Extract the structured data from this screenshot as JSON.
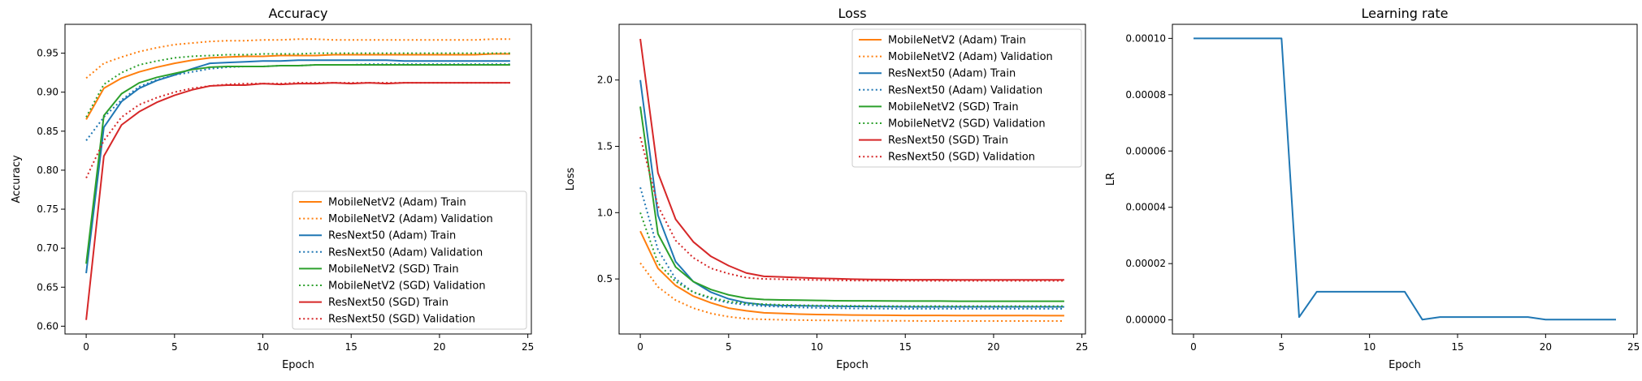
{
  "chart_data": [
    {
      "type": "line",
      "title": "Accuracy",
      "xlabel": "Epoch",
      "ylabel": "Accuracy",
      "xlim": [
        -1.2,
        25.2
      ],
      "ylim": [
        0.59,
        0.987
      ],
      "xticks": [
        0,
        5,
        10,
        15,
        20,
        25
      ],
      "xtick_labels": [
        "0",
        "5",
        "10",
        "15",
        "20",
        "25"
      ],
      "yticks": [
        0.6,
        0.65,
        0.7,
        0.75,
        0.8,
        0.85,
        0.9,
        0.95
      ],
      "ytick_labels": [
        "0.60",
        "0.65",
        "0.70",
        "0.75",
        "0.80",
        "0.85",
        "0.90",
        "0.95"
      ],
      "grid": false,
      "legend_position": "lower-right",
      "x": [
        0,
        1,
        2,
        3,
        4,
        5,
        6,
        7,
        8,
        9,
        10,
        11,
        12,
        13,
        14,
        15,
        16,
        17,
        18,
        19,
        20,
        21,
        22,
        23,
        24
      ],
      "series": [
        {
          "name": "MobileNetV2 (Adam) Train",
          "color": "#ff7f0e",
          "dash": "solid",
          "values": [
            0.865,
            0.905,
            0.918,
            0.926,
            0.932,
            0.937,
            0.941,
            0.944,
            0.945,
            0.946,
            0.946,
            0.947,
            0.947,
            0.947,
            0.948,
            0.948,
            0.948,
            0.948,
            0.948,
            0.948,
            0.948,
            0.948,
            0.948,
            0.949,
            0.949
          ]
        },
        {
          "name": "MobileNetV2 (Adam) Validation",
          "color": "#ff7f0e",
          "dash": "dotted",
          "values": [
            0.918,
            0.937,
            0.945,
            0.952,
            0.957,
            0.961,
            0.963,
            0.965,
            0.966,
            0.966,
            0.967,
            0.967,
            0.968,
            0.968,
            0.967,
            0.967,
            0.967,
            0.967,
            0.967,
            0.967,
            0.967,
            0.967,
            0.967,
            0.968,
            0.968
          ]
        },
        {
          "name": "ResNext50 (Adam) Train",
          "color": "#1f77b4",
          "dash": "solid",
          "values": [
            0.668,
            0.855,
            0.888,
            0.905,
            0.915,
            0.922,
            0.93,
            0.937,
            0.938,
            0.939,
            0.94,
            0.94,
            0.941,
            0.941,
            0.941,
            0.941,
            0.941,
            0.941,
            0.94,
            0.94,
            0.94,
            0.94,
            0.94,
            0.94,
            0.94
          ]
        },
        {
          "name": "ResNext50 (Adam) Validation",
          "color": "#1f77b4",
          "dash": "dotted",
          "values": [
            0.838,
            0.868,
            0.89,
            0.907,
            0.916,
            0.922,
            0.926,
            0.93,
            0.932,
            0.933,
            0.933,
            0.934,
            0.934,
            0.935,
            0.935,
            0.935,
            0.936,
            0.936,
            0.936,
            0.936,
            0.936,
            0.936,
            0.936,
            0.936,
            0.936
          ]
        },
        {
          "name": "MobileNetV2 (SGD) Train",
          "color": "#2ca02c",
          "dash": "solid",
          "values": [
            0.68,
            0.87,
            0.898,
            0.912,
            0.919,
            0.924,
            0.929,
            0.932,
            0.933,
            0.933,
            0.933,
            0.934,
            0.934,
            0.935,
            0.935,
            0.935,
            0.935,
            0.935,
            0.935,
            0.935,
            0.935,
            0.935,
            0.935,
            0.935,
            0.935
          ]
        },
        {
          "name": "MobileNetV2 (SGD) Validation",
          "color": "#2ca02c",
          "dash": "dotted",
          "values": [
            0.868,
            0.91,
            0.925,
            0.935,
            0.94,
            0.944,
            0.946,
            0.947,
            0.948,
            0.948,
            0.949,
            0.949,
            0.949,
            0.95,
            0.95,
            0.95,
            0.95,
            0.95,
            0.95,
            0.95,
            0.95,
            0.95,
            0.95,
            0.95,
            0.95
          ]
        },
        {
          "name": "ResNext50 (SGD) Train",
          "color": "#d62728",
          "dash": "solid",
          "values": [
            0.608,
            0.818,
            0.858,
            0.875,
            0.887,
            0.896,
            0.903,
            0.908,
            0.909,
            0.909,
            0.911,
            0.91,
            0.911,
            0.911,
            0.912,
            0.911,
            0.912,
            0.911,
            0.912,
            0.912,
            0.912,
            0.912,
            0.912,
            0.912,
            0.912
          ]
        },
        {
          "name": "ResNext50 (SGD) Validation",
          "color": "#d62728",
          "dash": "dotted",
          "values": [
            0.79,
            0.838,
            0.868,
            0.884,
            0.893,
            0.9,
            0.905,
            0.908,
            0.91,
            0.911,
            0.911,
            0.911,
            0.912,
            0.912,
            0.912,
            0.912,
            0.912,
            0.912,
            0.912,
            0.912,
            0.912,
            0.912,
            0.912,
            0.912,
            0.912
          ]
        }
      ]
    },
    {
      "type": "line",
      "title": "Loss",
      "xlabel": "Epoch",
      "ylabel": "Loss",
      "xlim": [
        -1.2,
        25.2
      ],
      "ylim": [
        0.085,
        2.42
      ],
      "xticks": [
        0,
        5,
        10,
        15,
        20,
        25
      ],
      "xtick_labels": [
        "0",
        "5",
        "10",
        "15",
        "20",
        "25"
      ],
      "yticks": [
        0.5,
        1.0,
        1.5,
        2.0
      ],
      "ytick_labels": [
        "0.5",
        "1.0",
        "1.5",
        "2.0"
      ],
      "grid": false,
      "legend_position": "upper-right",
      "x": [
        0,
        1,
        2,
        3,
        4,
        5,
        6,
        7,
        8,
        9,
        10,
        11,
        12,
        13,
        14,
        15,
        16,
        17,
        18,
        19,
        20,
        21,
        22,
        23,
        24
      ],
      "series": [
        {
          "name": "MobileNetV2 (Adam) Train",
          "color": "#ff7f0e",
          "dash": "solid",
          "values": [
            0.86,
            0.58,
            0.45,
            0.37,
            0.32,
            0.28,
            0.26,
            0.245,
            0.24,
            0.235,
            0.232,
            0.23,
            0.228,
            0.227,
            0.226,
            0.225,
            0.225,
            0.225,
            0.224,
            0.224,
            0.224,
            0.224,
            0.224,
            0.223,
            0.223
          ]
        },
        {
          "name": "MobileNetV2 (Adam) Validation",
          "color": "#ff7f0e",
          "dash": "dotted",
          "values": [
            0.62,
            0.44,
            0.34,
            0.28,
            0.24,
            0.215,
            0.2,
            0.195,
            0.192,
            0.19,
            0.188,
            0.187,
            0.186,
            0.185,
            0.184,
            0.184,
            0.183,
            0.183,
            0.183,
            0.183,
            0.183,
            0.183,
            0.183,
            0.183,
            0.183
          ]
        },
        {
          "name": "ResNext50 (Adam) Train",
          "color": "#1f77b4",
          "dash": "solid",
          "values": [
            2.0,
            0.98,
            0.63,
            0.48,
            0.4,
            0.35,
            0.32,
            0.305,
            0.3,
            0.298,
            0.296,
            0.294,
            0.293,
            0.292,
            0.291,
            0.29,
            0.29,
            0.29,
            0.29,
            0.29,
            0.29,
            0.29,
            0.29,
            0.29,
            0.29
          ]
        },
        {
          "name": "ResNext50 (Adam) Validation",
          "color": "#1f77b4",
          "dash": "dotted",
          "values": [
            1.19,
            0.72,
            0.5,
            0.4,
            0.35,
            0.32,
            0.305,
            0.295,
            0.29,
            0.285,
            0.282,
            0.28,
            0.278,
            0.277,
            0.276,
            0.275,
            0.275,
            0.275,
            0.275,
            0.275,
            0.275,
            0.275,
            0.275,
            0.275,
            0.275
          ]
        },
        {
          "name": "MobileNetV2 (SGD) Train",
          "color": "#2ca02c",
          "dash": "solid",
          "values": [
            1.8,
            0.84,
            0.59,
            0.48,
            0.42,
            0.38,
            0.355,
            0.345,
            0.342,
            0.34,
            0.338,
            0.336,
            0.335,
            0.335,
            0.334,
            0.333,
            0.333,
            0.333,
            0.332,
            0.332,
            0.332,
            0.332,
            0.332,
            0.332,
            0.332
          ]
        },
        {
          "name": "MobileNetV2 (SGD) Validation",
          "color": "#2ca02c",
          "dash": "dotted",
          "values": [
            1.0,
            0.62,
            0.48,
            0.4,
            0.36,
            0.33,
            0.315,
            0.31,
            0.305,
            0.302,
            0.3,
            0.298,
            0.297,
            0.296,
            0.295,
            0.295,
            0.295,
            0.295,
            0.295,
            0.295,
            0.295,
            0.295,
            0.295,
            0.295,
            0.295
          ]
        },
        {
          "name": "ResNext50 (SGD) Train",
          "color": "#d62728",
          "dash": "solid",
          "values": [
            2.31,
            1.3,
            0.95,
            0.78,
            0.67,
            0.6,
            0.545,
            0.52,
            0.515,
            0.51,
            0.505,
            0.502,
            0.498,
            0.496,
            0.495,
            0.494,
            0.494,
            0.494,
            0.493,
            0.493,
            0.493,
            0.493,
            0.493,
            0.493,
            0.493
          ]
        },
        {
          "name": "ResNext50 (SGD) Validation",
          "color": "#d62728",
          "dash": "dotted",
          "values": [
            1.57,
            1.05,
            0.79,
            0.66,
            0.58,
            0.54,
            0.51,
            0.5,
            0.498,
            0.495,
            0.492,
            0.49,
            0.488,
            0.487,
            0.486,
            0.486,
            0.486,
            0.486,
            0.486,
            0.486,
            0.486,
            0.486,
            0.486,
            0.486,
            0.486
          ]
        }
      ]
    },
    {
      "type": "line",
      "title": "Learning rate",
      "xlabel": "Epoch",
      "ylabel": "LR",
      "xlim": [
        -1.2,
        25.2
      ],
      "ylim": [
        -5e-06,
        0.000105
      ],
      "xticks": [
        0,
        5,
        10,
        15,
        20,
        25
      ],
      "xtick_labels": [
        "0",
        "5",
        "10",
        "15",
        "20",
        "25"
      ],
      "yticks": [
        0,
        2e-05,
        4e-05,
        6e-05,
        8e-05,
        0.0001
      ],
      "ytick_labels": [
        "0.00000",
        "0.00002",
        "0.00004",
        "0.00006",
        "0.00008",
        "0.00010"
      ],
      "grid": false,
      "x": [
        0,
        1,
        2,
        3,
        4,
        5,
        6,
        7,
        8,
        9,
        10,
        11,
        12,
        13,
        14,
        15,
        16,
        17,
        18,
        19,
        20,
        21,
        22,
        23,
        24
      ],
      "series": [
        {
          "color": "#1f77b4",
          "dash": "solid",
          "values": [
            0.0001,
            0.0001,
            0.0001,
            0.0001,
            0.0001,
            0.0001,
            1e-06,
            1e-05,
            1e-05,
            1e-05,
            1e-05,
            1e-05,
            1e-05,
            1e-07,
            1e-06,
            1e-06,
            1e-06,
            1e-06,
            1e-06,
            1e-06,
            1e-07,
            1e-07,
            1e-07,
            1e-07,
            1e-07
          ]
        }
      ]
    }
  ]
}
